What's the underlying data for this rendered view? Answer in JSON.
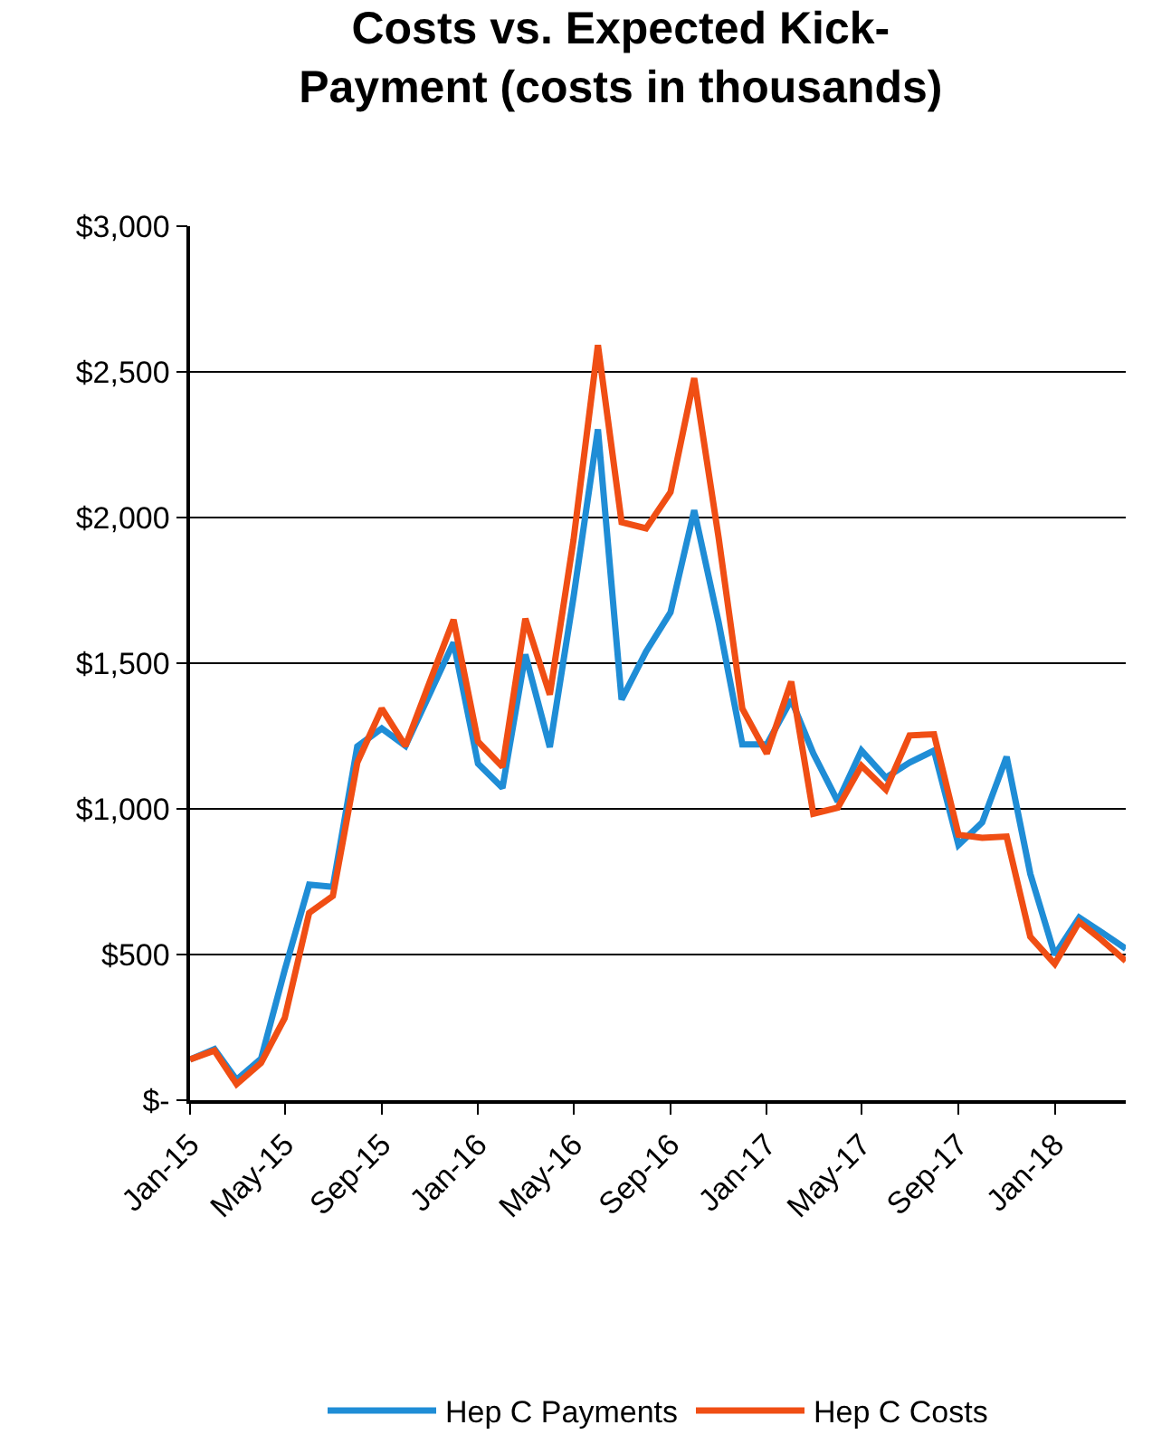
{
  "chart_data": {
    "type": "line",
    "title": "Costs vs. Expected Kick-\nPayment (costs in thousands)",
    "x": [
      "2015-01",
      "2015-02",
      "2015-03",
      "2015-04",
      "2015-05",
      "2015-06",
      "2015-07",
      "2015-08",
      "2015-09",
      "2015-10",
      "2015-11",
      "2015-12",
      "2016-01",
      "2016-02",
      "2016-03",
      "2016-04",
      "2016-05",
      "2016-06",
      "2016-07",
      "2016-08",
      "2016-09",
      "2016-10",
      "2016-11",
      "2016-12",
      "2017-01",
      "2017-02",
      "2017-03",
      "2017-04",
      "2017-05",
      "2017-06",
      "2017-07",
      "2017-08",
      "2017-09",
      "2017-10",
      "2017-11",
      "2017-12",
      "2018-01",
      "2018-02",
      "2018-03",
      "2018-04"
    ],
    "series": [
      {
        "name": "Hep C Payments",
        "color": "#1f8dd6",
        "values": [
          140,
          175,
          70,
          142,
          447,
          740,
          732,
          1214,
          1276,
          1216,
          1396,
          1571,
          1155,
          1072,
          1530,
          1212,
          1726,
          2303,
          1375,
          1540,
          1674,
          2025,
          1640,
          1221,
          1221,
          1375,
          1190,
          1025,
          1200,
          1107,
          1159,
          1200,
          876,
          953,
          1179,
          777,
          499,
          627,
          577,
          520
        ]
      },
      {
        "name": "Hep C Costs",
        "color": "#f04e14",
        "values": [
          140,
          170,
          55,
          128,
          282,
          643,
          701,
          1159,
          1344,
          1216,
          1437,
          1649,
          1231,
          1144,
          1653,
          1392,
          1922,
          2592,
          1984,
          1963,
          2087,
          2478,
          1930,
          1344,
          1190,
          1437,
          983,
          1004,
          1148,
          1066,
          1252,
          1256,
          911,
          901,
          905,
          561,
          468,
          612,
          551,
          478
        ]
      }
    ],
    "xlim": [
      "2015-01",
      "2018-04"
    ],
    "xticks": [
      {
        "value": "2015-01",
        "label": "Jan-15"
      },
      {
        "value": "2015-05",
        "label": "May-15"
      },
      {
        "value": "2015-09",
        "label": "Sep-15"
      },
      {
        "value": "2016-01",
        "label": "Jan-16"
      },
      {
        "value": "2016-05",
        "label": "May-16"
      },
      {
        "value": "2016-09",
        "label": "Sep-16"
      },
      {
        "value": "2017-01",
        "label": "Jan-17"
      },
      {
        "value": "2017-05",
        "label": "May-17"
      },
      {
        "value": "2017-09",
        "label": "Sep-17"
      },
      {
        "value": "2018-01",
        "label": "Jan-18"
      }
    ],
    "ylim": [
      0,
      3000
    ],
    "yticks": [
      {
        "value": 0,
        "label": "$-"
      },
      {
        "value": 500,
        "label": "$500"
      },
      {
        "value": 1000,
        "label": "$1,000"
      },
      {
        "value": 1500,
        "label": "$1,500"
      },
      {
        "value": 2000,
        "label": "$2,000"
      },
      {
        "value": 2500,
        "label": "$2,500"
      },
      {
        "value": 3000,
        "label": "$3,000"
      }
    ],
    "grid": "y",
    "legend": "bottom",
    "marker": "none",
    "line_style": "solid"
  }
}
